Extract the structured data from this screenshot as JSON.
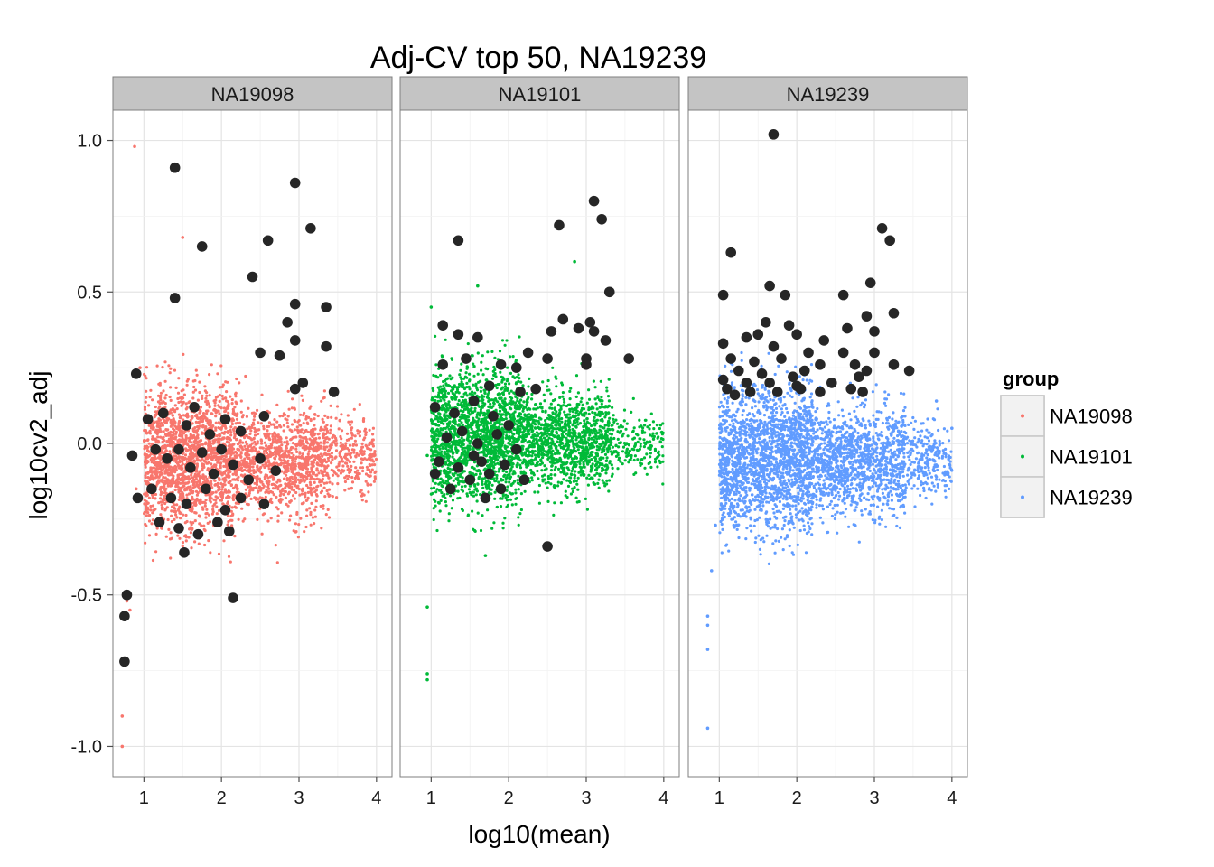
{
  "chart_data": {
    "type": "scatter",
    "title": "Adj-CV top 50, NA19239",
    "xlabel": "log10(mean)",
    "ylabel": "log10cv2_adj",
    "xlim": [
      0.6,
      4.2
    ],
    "ylim": [
      -1.1,
      1.1
    ],
    "x_ticks": [
      1,
      2,
      3,
      4
    ],
    "y_ticks": [
      -1.0,
      -0.5,
      0.0,
      0.5,
      1.0
    ],
    "y_tick_labels": [
      "-1.0",
      "-0.5",
      "0.0",
      "0.5",
      "1.0"
    ],
    "grid": true,
    "legend": {
      "title": "group",
      "position": "right",
      "entries": [
        {
          "name": "NA19098",
          "color": "#F8766D"
        },
        {
          "name": "NA19101",
          "color": "#00BA38"
        },
        {
          "name": "NA19239",
          "color": "#619CFF"
        }
      ]
    },
    "highlight_color": "#262626",
    "panels": [
      {
        "label": "NA19098",
        "color": "#F8766D",
        "cloud": [
          {
            "x_range": [
              1.0,
              2.2
            ],
            "y_center": -0.05,
            "y_spread": 0.14,
            "n": 1800
          },
          {
            "x_range": [
              2.2,
              3.4
            ],
            "y_center": -0.06,
            "y_spread": 0.1,
            "n": 1100
          },
          {
            "x_range": [
              3.4,
              4.0
            ],
            "y_center": -0.04,
            "y_spread": 0.07,
            "n": 250
          }
        ],
        "outliers": [
          {
            "x": 0.88,
            "y": 0.98
          },
          {
            "x": 1.5,
            "y": 0.68
          },
          {
            "x": 0.72,
            "y": -0.9
          },
          {
            "x": 0.72,
            "y": -1.0
          },
          {
            "x": 0.78,
            "y": -0.52
          },
          {
            "x": 0.82,
            "y": -0.55
          },
          {
            "x": 0.9,
            "y": -0.15
          },
          {
            "x": 0.95,
            "y": 0.25
          }
        ],
        "highlights": [
          {
            "x": 1.4,
            "y": 0.91
          },
          {
            "x": 2.95,
            "y": 0.86
          },
          {
            "x": 3.15,
            "y": 0.71
          },
          {
            "x": 2.6,
            "y": 0.67
          },
          {
            "x": 1.75,
            "y": 0.65
          },
          {
            "x": 2.4,
            "y": 0.55
          },
          {
            "x": 1.4,
            "y": 0.48
          },
          {
            "x": 2.95,
            "y": 0.46
          },
          {
            "x": 3.35,
            "y": 0.45
          },
          {
            "x": 2.85,
            "y": 0.4
          },
          {
            "x": 2.95,
            "y": 0.34
          },
          {
            "x": 3.35,
            "y": 0.32
          },
          {
            "x": 2.5,
            "y": 0.3
          },
          {
            "x": 2.75,
            "y": 0.29
          },
          {
            "x": 0.9,
            "y": 0.23
          },
          {
            "x": 3.05,
            "y": 0.2
          },
          {
            "x": 3.45,
            "y": 0.17
          },
          {
            "x": 2.95,
            "y": 0.18
          },
          {
            "x": 2.55,
            "y": 0.09
          },
          {
            "x": 1.05,
            "y": 0.08
          },
          {
            "x": 1.25,
            "y": 0.1
          },
          {
            "x": 1.55,
            "y": 0.06
          },
          {
            "x": 1.65,
            "y": 0.12
          },
          {
            "x": 1.85,
            "y": 0.03
          },
          {
            "x": 2.05,
            "y": 0.08
          },
          {
            "x": 2.25,
            "y": 0.04
          },
          {
            "x": 1.15,
            "y": -0.02
          },
          {
            "x": 1.3,
            "y": -0.05
          },
          {
            "x": 1.45,
            "y": -0.02
          },
          {
            "x": 1.6,
            "y": -0.08
          },
          {
            "x": 1.75,
            "y": -0.03
          },
          {
            "x": 1.9,
            "y": -0.1
          },
          {
            "x": 2.0,
            "y": -0.02
          },
          {
            "x": 2.15,
            "y": -0.07
          },
          {
            "x": 2.35,
            "y": -0.12
          },
          {
            "x": 2.5,
            "y": -0.05
          },
          {
            "x": 2.7,
            "y": -0.09
          },
          {
            "x": 1.1,
            "y": -0.15
          },
          {
            "x": 1.35,
            "y": -0.18
          },
          {
            "x": 1.55,
            "y": -0.2
          },
          {
            "x": 1.8,
            "y": -0.15
          },
          {
            "x": 2.05,
            "y": -0.22
          },
          {
            "x": 2.25,
            "y": -0.18
          },
          {
            "x": 2.55,
            "y": -0.2
          },
          {
            "x": 1.2,
            "y": -0.26
          },
          {
            "x": 1.45,
            "y": -0.28
          },
          {
            "x": 1.7,
            "y": -0.3
          },
          {
            "x": 1.95,
            "y": -0.26
          },
          {
            "x": 2.1,
            "y": -0.29
          },
          {
            "x": 1.52,
            "y": -0.36
          },
          {
            "x": 0.85,
            "y": -0.04
          },
          {
            "x": 0.92,
            "y": -0.18
          },
          {
            "x": 2.15,
            "y": -0.51
          },
          {
            "x": 0.78,
            "y": -0.5
          },
          {
            "x": 0.75,
            "y": -0.57
          },
          {
            "x": 0.75,
            "y": -0.72
          }
        ]
      },
      {
        "label": "NA19101",
        "color": "#00BA38",
        "cloud": [
          {
            "x_range": [
              1.0,
              2.2
            ],
            "y_center": 0.02,
            "y_spread": 0.13,
            "n": 1800
          },
          {
            "x_range": [
              2.2,
              3.3
            ],
            "y_center": 0.01,
            "y_spread": 0.09,
            "n": 1100
          },
          {
            "x_range": [
              3.3,
              4.0
            ],
            "y_center": 0.0,
            "y_spread": 0.06,
            "n": 200
          }
        ],
        "outliers": [
          {
            "x": 2.85,
            "y": 0.6
          },
          {
            "x": 1.6,
            "y": 0.52
          },
          {
            "x": 1.0,
            "y": 0.45
          },
          {
            "x": 0.95,
            "y": -0.54
          },
          {
            "x": 0.95,
            "y": -0.76
          },
          {
            "x": 0.95,
            "y": -0.78
          },
          {
            "x": 1.7,
            "y": -0.37
          },
          {
            "x": 0.95,
            "y": -0.04
          }
        ],
        "highlights": [
          {
            "x": 3.1,
            "y": 0.8
          },
          {
            "x": 3.2,
            "y": 0.74
          },
          {
            "x": 2.65,
            "y": 0.72
          },
          {
            "x": 1.35,
            "y": 0.67
          },
          {
            "x": 3.3,
            "y": 0.5
          },
          {
            "x": 2.7,
            "y": 0.41
          },
          {
            "x": 3.05,
            "y": 0.4
          },
          {
            "x": 1.15,
            "y": 0.39
          },
          {
            "x": 2.9,
            "y": 0.38
          },
          {
            "x": 3.1,
            "y": 0.37
          },
          {
            "x": 2.55,
            "y": 0.37
          },
          {
            "x": 3.25,
            "y": 0.34
          },
          {
            "x": 1.6,
            "y": 0.35
          },
          {
            "x": 1.35,
            "y": 0.36
          },
          {
            "x": 2.25,
            "y": 0.3
          },
          {
            "x": 3.55,
            "y": 0.28
          },
          {
            "x": 2.5,
            "y": 0.28
          },
          {
            "x": 3.0,
            "y": 0.28
          },
          {
            "x": 1.9,
            "y": 0.26
          },
          {
            "x": 2.1,
            "y": 0.25
          },
          {
            "x": 3.0,
            "y": 0.26
          },
          {
            "x": 1.15,
            "y": 0.26
          },
          {
            "x": 1.45,
            "y": 0.28
          },
          {
            "x": 1.75,
            "y": 0.19
          },
          {
            "x": 2.15,
            "y": 0.17
          },
          {
            "x": 2.35,
            "y": 0.18
          },
          {
            "x": 1.05,
            "y": 0.12
          },
          {
            "x": 1.3,
            "y": 0.1
          },
          {
            "x": 1.55,
            "y": 0.14
          },
          {
            "x": 1.8,
            "y": 0.09
          },
          {
            "x": 2.0,
            "y": 0.06
          },
          {
            "x": 1.2,
            "y": 0.02
          },
          {
            "x": 1.4,
            "y": 0.04
          },
          {
            "x": 1.6,
            "y": 0.0
          },
          {
            "x": 1.85,
            "y": 0.03
          },
          {
            "x": 2.1,
            "y": -0.02
          },
          {
            "x": 1.1,
            "y": -0.06
          },
          {
            "x": 1.35,
            "y": -0.08
          },
          {
            "x": 1.55,
            "y": -0.04
          },
          {
            "x": 1.75,
            "y": -0.1
          },
          {
            "x": 1.95,
            "y": -0.07
          },
          {
            "x": 2.2,
            "y": -0.12
          },
          {
            "x": 1.25,
            "y": -0.15
          },
          {
            "x": 1.5,
            "y": -0.12
          },
          {
            "x": 1.7,
            "y": -0.18
          },
          {
            "x": 1.9,
            "y": -0.15
          },
          {
            "x": 1.05,
            "y": -0.1
          },
          {
            "x": 1.65,
            "y": -0.06
          },
          {
            "x": 2.5,
            "y": -0.34
          }
        ]
      },
      {
        "label": "NA19239",
        "color": "#619CFF",
        "cloud": [
          {
            "x_range": [
              1.0,
              2.2
            ],
            "y_center": -0.05,
            "y_spread": 0.14,
            "n": 1900
          },
          {
            "x_range": [
              2.2,
              3.4
            ],
            "y_center": -0.06,
            "y_spread": 0.1,
            "n": 1200
          },
          {
            "x_range": [
              3.4,
              4.0
            ],
            "y_center": -0.06,
            "y_spread": 0.07,
            "n": 250
          }
        ],
        "outliers": [
          {
            "x": 0.85,
            "y": -0.57
          },
          {
            "x": 0.85,
            "y": -0.6
          },
          {
            "x": 0.85,
            "y": -0.68
          },
          {
            "x": 0.85,
            "y": -0.94
          },
          {
            "x": 0.9,
            "y": -0.42
          },
          {
            "x": 0.95,
            "y": -0.27
          },
          {
            "x": 3.8,
            "y": 0.14
          },
          {
            "x": 4.0,
            "y": 0.05
          }
        ],
        "highlights": [
          {
            "x": 1.7,
            "y": 1.02
          },
          {
            "x": 3.1,
            "y": 0.71
          },
          {
            "x": 3.2,
            "y": 0.67
          },
          {
            "x": 1.15,
            "y": 0.63
          },
          {
            "x": 2.95,
            "y": 0.53
          },
          {
            "x": 1.65,
            "y": 0.52
          },
          {
            "x": 1.85,
            "y": 0.49
          },
          {
            "x": 2.6,
            "y": 0.49
          },
          {
            "x": 1.05,
            "y": 0.49
          },
          {
            "x": 3.25,
            "y": 0.43
          },
          {
            "x": 2.9,
            "y": 0.42
          },
          {
            "x": 1.6,
            "y": 0.4
          },
          {
            "x": 1.9,
            "y": 0.39
          },
          {
            "x": 2.65,
            "y": 0.38
          },
          {
            "x": 3.0,
            "y": 0.37
          },
          {
            "x": 1.35,
            "y": 0.35
          },
          {
            "x": 1.5,
            "y": 0.36
          },
          {
            "x": 2.0,
            "y": 0.36
          },
          {
            "x": 2.35,
            "y": 0.34
          },
          {
            "x": 1.05,
            "y": 0.33
          },
          {
            "x": 1.7,
            "y": 0.32
          },
          {
            "x": 2.15,
            "y": 0.3
          },
          {
            "x": 2.6,
            "y": 0.3
          },
          {
            "x": 3.0,
            "y": 0.3
          },
          {
            "x": 1.15,
            "y": 0.28
          },
          {
            "x": 1.45,
            "y": 0.27
          },
          {
            "x": 1.8,
            "y": 0.28
          },
          {
            "x": 2.3,
            "y": 0.26
          },
          {
            "x": 2.75,
            "y": 0.26
          },
          {
            "x": 3.25,
            "y": 0.26
          },
          {
            "x": 1.25,
            "y": 0.24
          },
          {
            "x": 1.55,
            "y": 0.23
          },
          {
            "x": 1.95,
            "y": 0.22
          },
          {
            "x": 2.1,
            "y": 0.24
          },
          {
            "x": 2.9,
            "y": 0.24
          },
          {
            "x": 1.05,
            "y": 0.21
          },
          {
            "x": 1.35,
            "y": 0.2
          },
          {
            "x": 1.65,
            "y": 0.2
          },
          {
            "x": 2.0,
            "y": 0.19
          },
          {
            "x": 2.45,
            "y": 0.2
          },
          {
            "x": 2.8,
            "y": 0.22
          },
          {
            "x": 3.45,
            "y": 0.24
          },
          {
            "x": 1.1,
            "y": 0.18
          },
          {
            "x": 1.4,
            "y": 0.17
          },
          {
            "x": 1.75,
            "y": 0.17
          },
          {
            "x": 2.05,
            "y": 0.18
          },
          {
            "x": 2.3,
            "y": 0.17
          },
          {
            "x": 2.7,
            "y": 0.18
          },
          {
            "x": 2.85,
            "y": 0.17
          },
          {
            "x": 1.2,
            "y": 0.16
          }
        ]
      }
    ]
  }
}
